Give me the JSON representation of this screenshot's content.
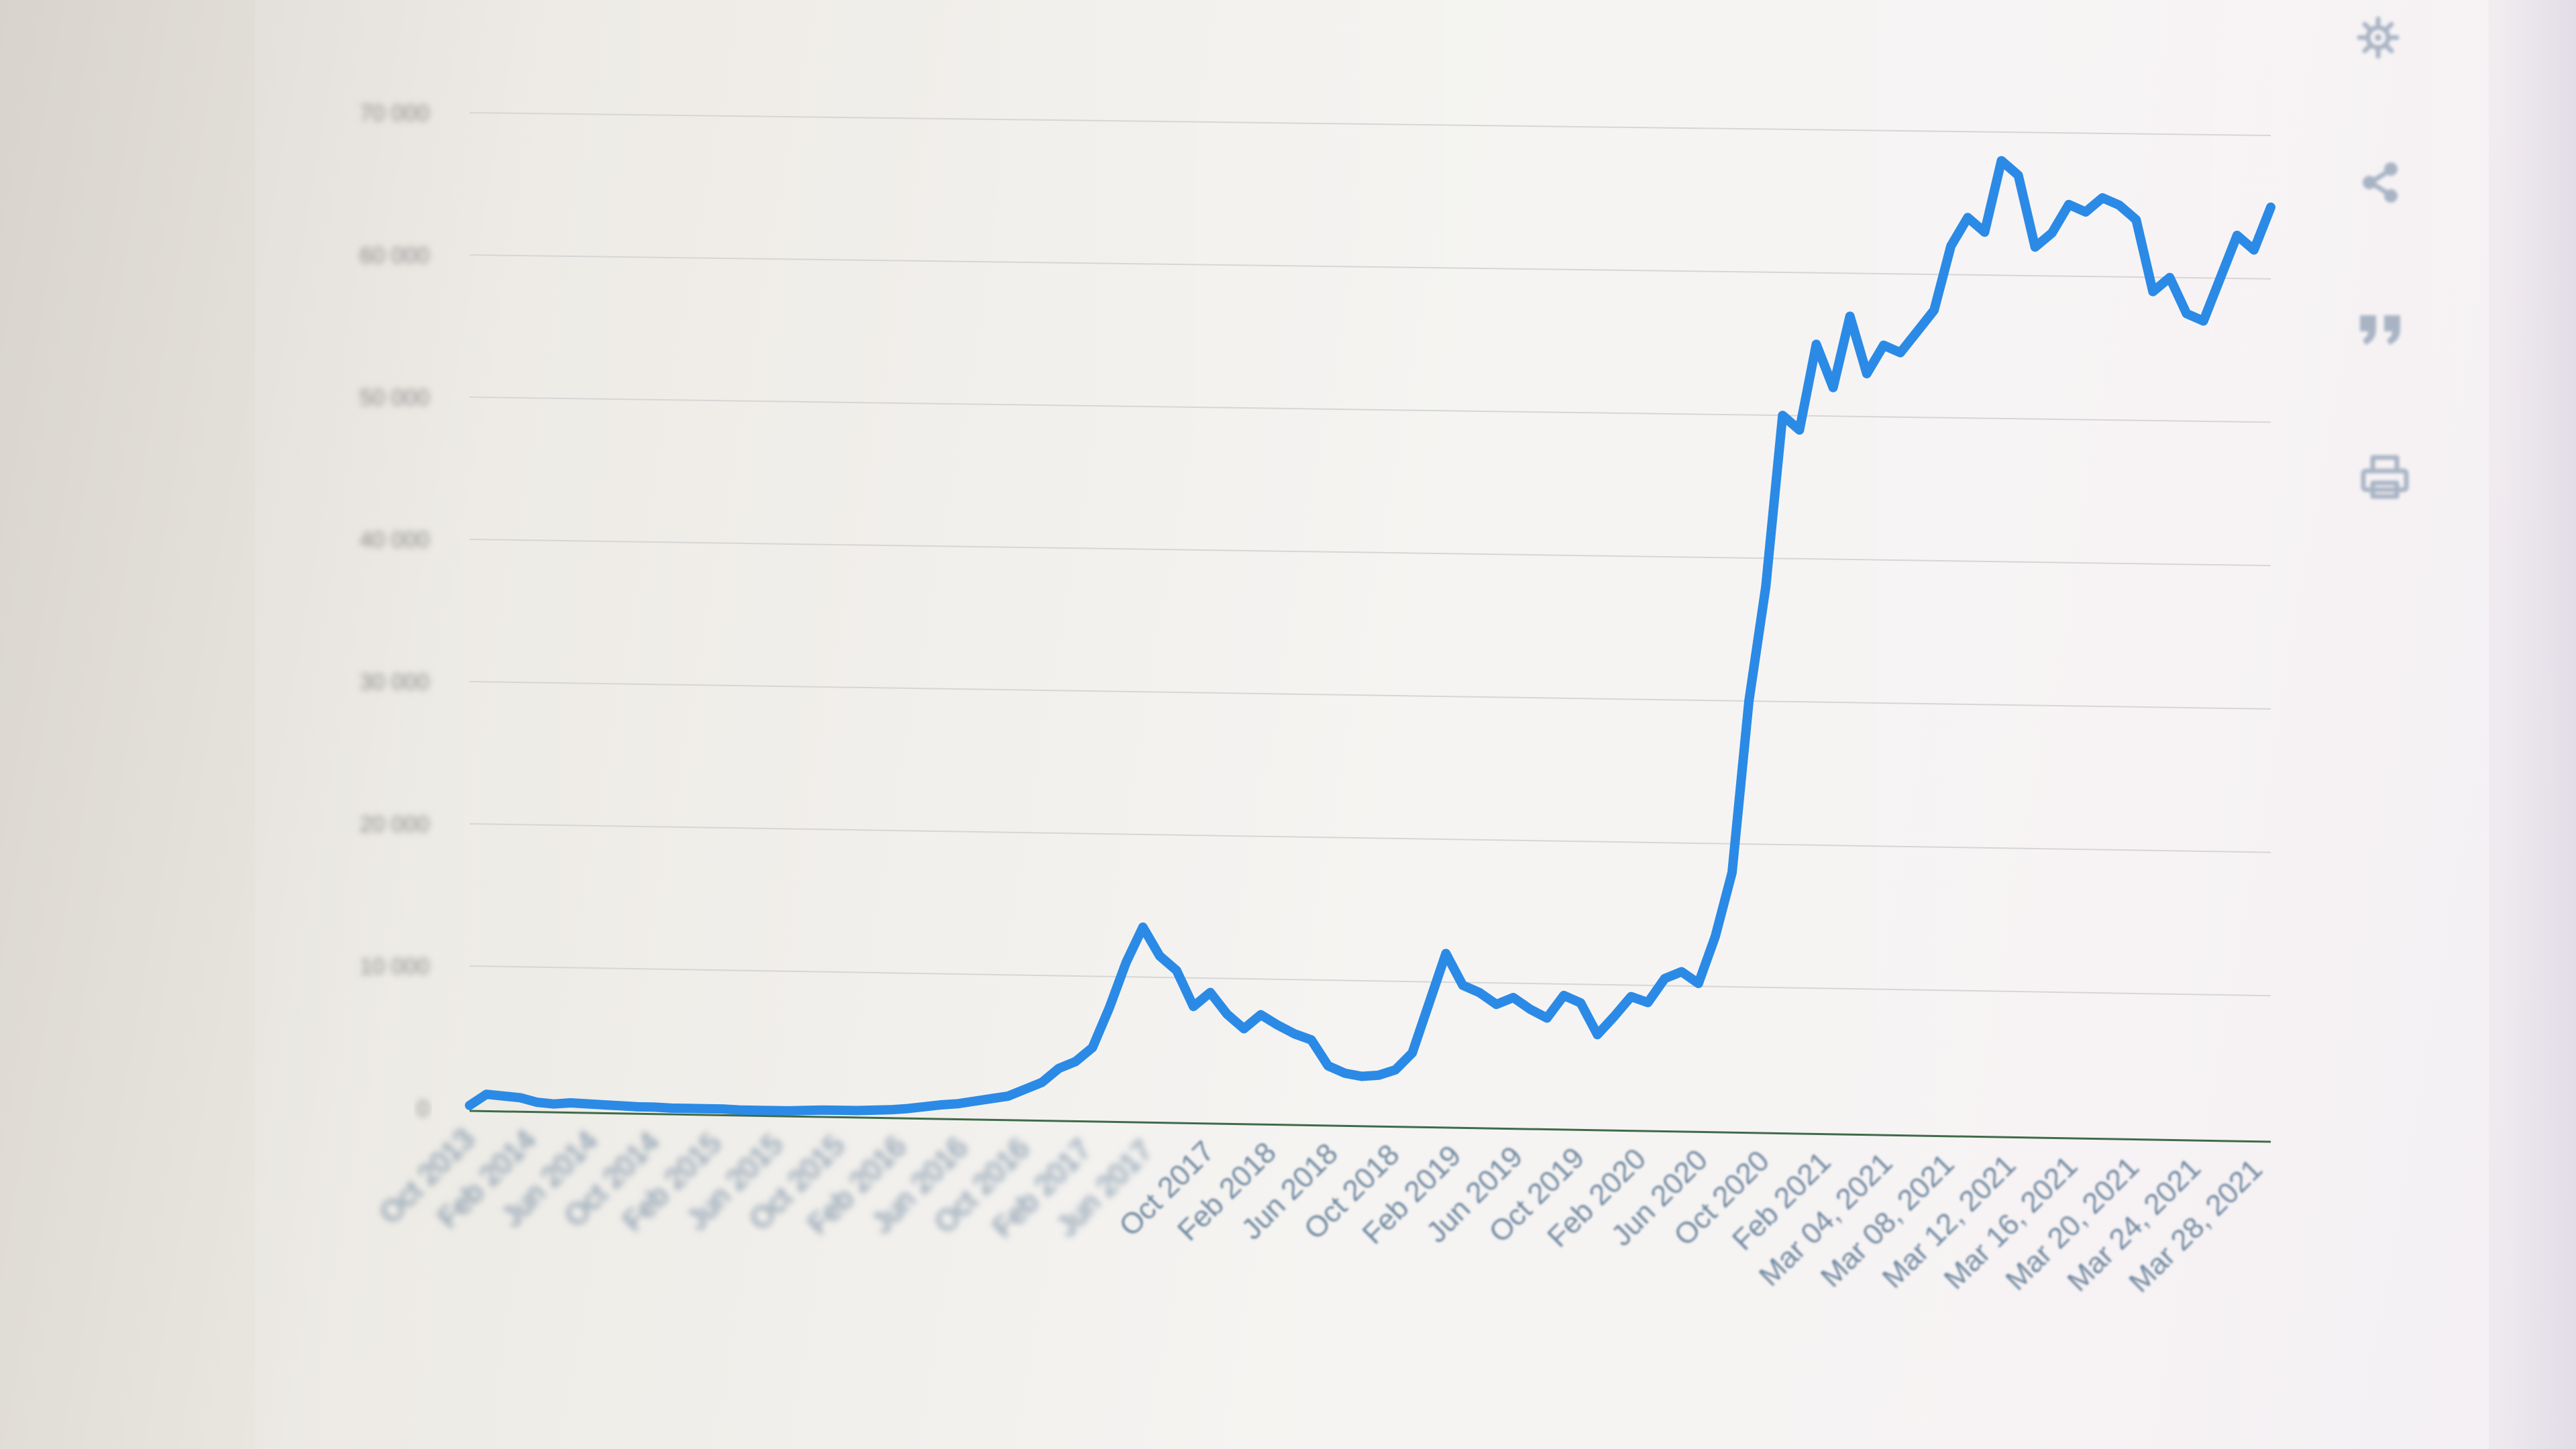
{
  "toolbar": {
    "icons": [
      "gear-icon",
      "share-icon",
      "quote-icon",
      "print-icon"
    ]
  },
  "colors": {
    "series": "#2b8ae6",
    "axis": "#3f6b4a",
    "grid": "#d6d6d6",
    "tick_x": "#6f88a0",
    "icon": "#a8b4c4"
  },
  "chart_data": {
    "type": "line",
    "title": "",
    "xlabel": "",
    "ylabel": "",
    "ylim": [
      0,
      70000
    ],
    "yticks": [
      0,
      10000,
      20000,
      30000,
      40000,
      50000,
      60000,
      70000
    ],
    "ytick_labels": [
      "0",
      "10 000",
      "20 000",
      "30 000",
      "40 000",
      "50 000",
      "60 000",
      "70 000"
    ],
    "grid": true,
    "legend": "none",
    "x_tick_labels": [
      "Oct 2013",
      "Feb 2014",
      "Jun 2014",
      "Oct 2014",
      "Feb 2015",
      "Jun 2015",
      "Oct 2015",
      "Feb 2016",
      "Jun 2016",
      "Oct 2016",
      "Feb 2017",
      "Jun 2017",
      "Oct 2017",
      "Feb 2018",
      "Jun 2018",
      "Oct 2018",
      "Feb 2019",
      "Jun 2019",
      "Oct 2019",
      "Feb 2020",
      "Jun 2020",
      "Oct 2020",
      "Feb 2021",
      "Mar 04, 2021",
      "Mar 08, 2021",
      "Mar 12, 2021",
      "Mar 16, 2021",
      "Mar 20, 2021",
      "Mar 24, 2021",
      "Mar 28, 2021"
    ],
    "series": [
      {
        "values": [
          200,
          1000,
          900,
          800,
          500,
          400,
          500,
          450,
          400,
          350,
          300,
          300,
          250,
          250,
          250,
          250,
          200,
          200,
          200,
          200,
          250,
          300,
          300,
          300,
          350,
          400,
          500,
          650,
          800,
          900,
          1100,
          1300,
          1500,
          2000,
          2500,
          3500,
          4000,
          5000,
          7800,
          11000,
          13500,
          11500,
          10500,
          8000,
          9000,
          7500,
          6500,
          7500,
          6800,
          6200,
          5800,
          4000,
          3500,
          3300,
          3400,
          3800,
          5000,
          8500,
          12000,
          9800,
          9300,
          8500,
          9000,
          8200,
          7600,
          9200,
          8700,
          6500,
          7800,
          9200,
          8800,
          10500,
          11000,
          10200,
          13500,
          18000,
          30000,
          38000,
          50000,
          49000,
          55000,
          52000,
          57000,
          53000,
          55000,
          54500,
          56000,
          57500,
          62000,
          64000,
          63000,
          68000,
          67000,
          62000,
          63000,
          65000,
          64500,
          65500,
          65000,
          64000,
          59000,
          60000,
          57500,
          57000,
          60000,
          63000,
          62000,
          65000
        ]
      }
    ]
  }
}
